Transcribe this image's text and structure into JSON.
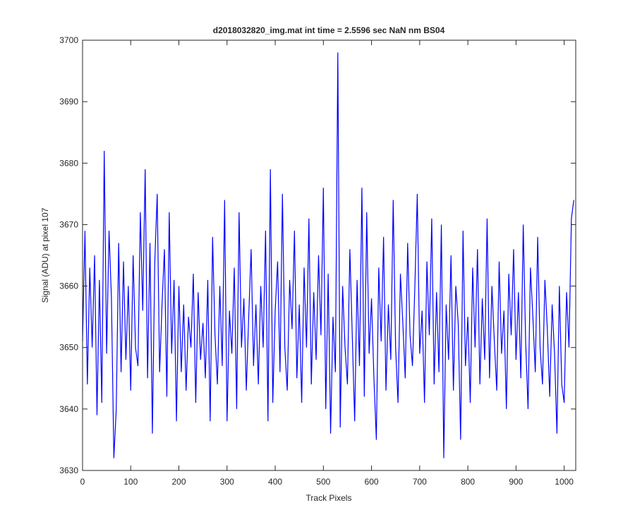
{
  "chart_data": {
    "type": "line",
    "title": "d2018032820_img.mat int time = 2.5596 sec  NaN nm BS04",
    "x_label": "Track Pixels",
    "y_label": "Signal (ADU) at pixel 107",
    "color": "#0000ff",
    "xlim": [
      0,
      1024
    ],
    "ylim": [
      3630,
      3700
    ],
    "xticks": [
      0,
      100,
      200,
      300,
      400,
      500,
      600,
      700,
      800,
      900,
      1000
    ],
    "yticks": [
      3630,
      3640,
      3650,
      3660,
      3670,
      3680,
      3690,
      3700
    ],
    "grid": false,
    "x": [
      0,
      5,
      10,
      15,
      20,
      25,
      30,
      35,
      40,
      45,
      50,
      55,
      60,
      65,
      70,
      75,
      80,
      85,
      90,
      95,
      100,
      105,
      110,
      115,
      120,
      125,
      130,
      135,
      140,
      145,
      150,
      155,
      160,
      165,
      170,
      175,
      180,
      185,
      190,
      195,
      200,
      205,
      210,
      215,
      220,
      225,
      230,
      235,
      240,
      245,
      250,
      255,
      260,
      265,
      270,
      275,
      280,
      285,
      290,
      295,
      300,
      305,
      310,
      315,
      320,
      325,
      330,
      335,
      340,
      345,
      350,
      355,
      360,
      365,
      370,
      375,
      380,
      385,
      390,
      395,
      400,
      405,
      410,
      415,
      420,
      425,
      430,
      435,
      440,
      445,
      450,
      455,
      460,
      465,
      470,
      475,
      480,
      485,
      490,
      495,
      500,
      505,
      510,
      515,
      520,
      525,
      530,
      535,
      540,
      545,
      550,
      555,
      560,
      565,
      570,
      575,
      580,
      585,
      590,
      595,
      600,
      605,
      610,
      615,
      620,
      625,
      630,
      635,
      640,
      645,
      650,
      655,
      660,
      665,
      670,
      675,
      680,
      685,
      690,
      695,
      700,
      705,
      710,
      715,
      720,
      725,
      730,
      735,
      740,
      745,
      750,
      755,
      760,
      765,
      770,
      775,
      780,
      785,
      790,
      795,
      800,
      805,
      810,
      815,
      820,
      825,
      830,
      835,
      840,
      845,
      850,
      855,
      860,
      865,
      870,
      875,
      880,
      885,
      890,
      895,
      900,
      905,
      910,
      915,
      920,
      925,
      930,
      935,
      940,
      945,
      950,
      955,
      960,
      965,
      970,
      975,
      980,
      985,
      990,
      995,
      1000,
      1005,
      1010,
      1015,
      1020
    ],
    "values": [
      3651,
      3669,
      3644,
      3663,
      3650,
      3665,
      3639,
      3661,
      3641,
      3682,
      3649,
      3669,
      3658,
      3632,
      3640,
      3667,
      3646,
      3664,
      3648,
      3660,
      3643,
      3665,
      3650,
      3647,
      3672,
      3656,
      3679,
      3645,
      3667,
      3636,
      3664,
      3675,
      3646,
      3657,
      3666,
      3642,
      3672,
      3649,
      3661,
      3638,
      3660,
      3646,
      3657,
      3643,
      3655,
      3650,
      3662,
      3641,
      3659,
      3648,
      3654,
      3645,
      3661,
      3638,
      3668,
      3652,
      3644,
      3660,
      3647,
      3674,
      3638,
      3656,
      3649,
      3663,
      3640,
      3672,
      3650,
      3658,
      3643,
      3655,
      3666,
      3647,
      3657,
      3644,
      3660,
      3650,
      3669,
      3638,
      3679,
      3641,
      3656,
      3664,
      3646,
      3675,
      3650,
      3643,
      3661,
      3653,
      3669,
      3645,
      3657,
      3641,
      3663,
      3650,
      3671,
      3644,
      3659,
      3648,
      3665,
      3652,
      3676,
      3640,
      3662,
      3636,
      3655,
      3646,
      3698,
      3637,
      3660,
      3650,
      3644,
      3666,
      3652,
      3638,
      3661,
      3647,
      3676,
      3642,
      3672,
      3649,
      3658,
      3645,
      3635,
      3663,
      3651,
      3668,
      3643,
      3657,
      3648,
      3674,
      3650,
      3641,
      3662,
      3654,
      3645,
      3667,
      3652,
      3647,
      3660,
      3675,
      3649,
      3656,
      3641,
      3664,
      3652,
      3671,
      3644,
      3659,
      3646,
      3670,
      3632,
      3657,
      3648,
      3665,
      3643,
      3660,
      3654,
      3635,
      3669,
      3647,
      3655,
      3641,
      3663,
      3650,
      3666,
      3644,
      3658,
      3648,
      3671,
      3645,
      3660,
      3651,
      3643,
      3664,
      3649,
      3656,
      3640,
      3662,
      3652,
      3666,
      3648,
      3659,
      3645,
      3670,
      3651,
      3640,
      3663,
      3655,
      3646,
      3668,
      3650,
      3644,
      3661,
      3653,
      3642,
      3657,
      3649,
      3636,
      3660,
      3644,
      3641,
      3659,
      3650,
      3671,
      3674
    ]
  }
}
